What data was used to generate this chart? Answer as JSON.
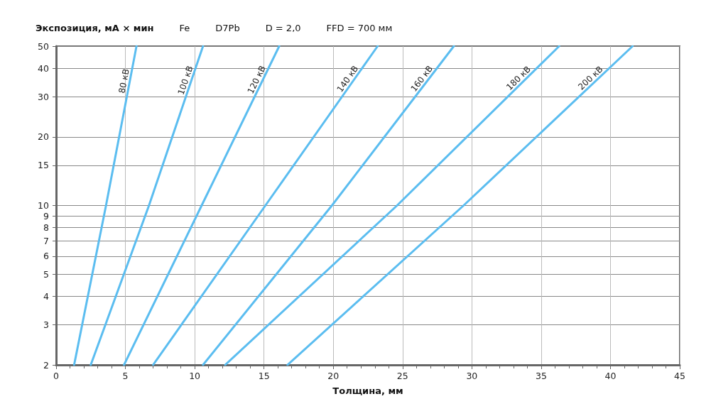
{
  "chart_data": {
    "type": "line",
    "ylabel": "Экспозиция, мА × мин",
    "xlabel": "Толщина, мм",
    "annotations": [
      "Fe",
      "D7Pb",
      "D = 2,0",
      "FFD = 700 мм"
    ],
    "series": [
      {
        "name": "80 кВ",
        "color": "#5bbdf0",
        "x": [
          1.3,
          3.6,
          5.8
        ],
        "values": [
          2,
          10,
          50
        ]
      },
      {
        "name": "100 кВ",
        "color": "#5bbdf0",
        "x": [
          2.5,
          6.7,
          10.6
        ],
        "values": [
          2,
          10,
          50
        ]
      },
      {
        "name": "120 кВ",
        "color": "#5bbdf0",
        "x": [
          4.9,
          10.5,
          16.1
        ],
        "values": [
          2,
          10,
          50
        ]
      },
      {
        "name": "140 кВ",
        "color": "#5bbdf0",
        "x": [
          7.0,
          15.1,
          23.2
        ],
        "values": [
          2,
          10,
          50
        ]
      },
      {
        "name": "160 кВ",
        "color": "#5bbdf0",
        "x": [
          10.6,
          19.9,
          28.7
        ],
        "values": [
          2,
          10,
          50
        ]
      },
      {
        "name": "180 кВ",
        "color": "#5bbdf0",
        "x": [
          12.2,
          24.6,
          36.3
        ],
        "values": [
          2,
          10,
          50
        ]
      },
      {
        "name": "200 кВ",
        "color": "#5bbdf0",
        "x": [
          16.7,
          29.4,
          41.6
        ],
        "values": [
          2,
          10,
          50
        ]
      }
    ],
    "xlim": [
      0,
      45
    ],
    "xticks": [
      0,
      5,
      10,
      15,
      20,
      25,
      30,
      35,
      40,
      45
    ],
    "ylim": [
      2,
      50
    ],
    "yticks": [
      2,
      3,
      4,
      5,
      6,
      7,
      8,
      9,
      10,
      15,
      20,
      30,
      40,
      50
    ],
    "log": true,
    "grid": true,
    "marker": "none",
    "line_style": "solid"
  }
}
